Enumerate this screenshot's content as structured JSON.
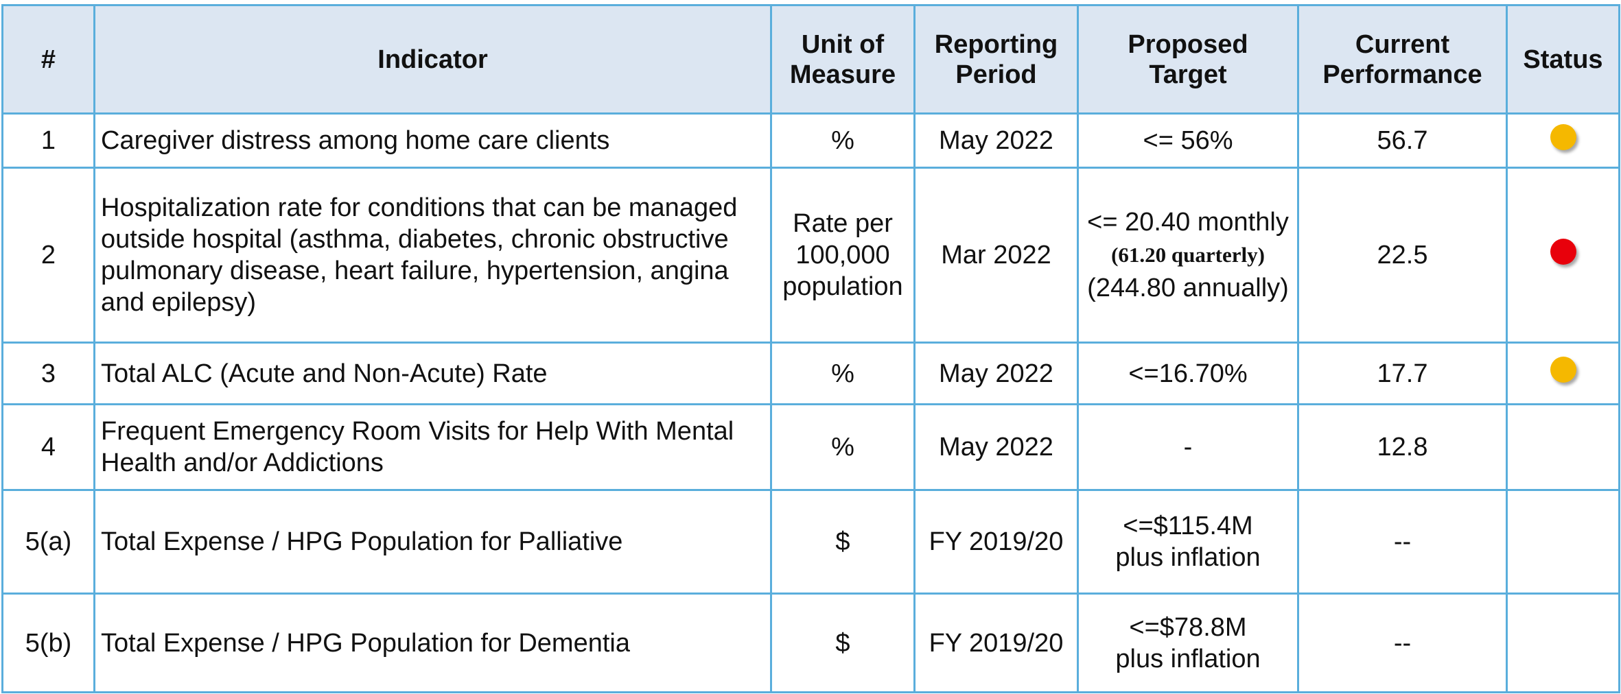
{
  "table": {
    "header": [
      [
        "#"
      ],
      [
        "Indicator"
      ],
      [
        "Unit of",
        "Measure"
      ],
      [
        "Reporting",
        "Period"
      ],
      [
        "Proposed",
        "Target"
      ],
      [
        "Current",
        "Performance"
      ],
      [
        "Status"
      ]
    ],
    "rows": [
      {
        "num": "1",
        "indicator": "Caregiver distress among home care clients",
        "unit": [
          "%"
        ],
        "period": "May 2022",
        "target": [
          "<= 56%"
        ],
        "current": "56.7",
        "status_color": "#f5b800"
      },
      {
        "num": "2",
        "indicator": "Hospitalization rate for conditions that can be managed outside hospital (asthma, diabetes, chronic obstructive pulmonary disease, heart failure, hypertension, angina and epilepsy)",
        "unit": [
          "Rate per",
          "100,000",
          "population"
        ],
        "period": "Mar 2022",
        "target": [
          "<= 20.40 monthly",
          "(61.20 quarterly)",
          "(244.80 annually)"
        ],
        "current": "22.5",
        "status_color": "#e8000b"
      },
      {
        "num": "3",
        "indicator": "Total ALC (Acute and Non-Acute) Rate",
        "unit": [
          "%"
        ],
        "period": "May 2022",
        "target": [
          "<=16.70%"
        ],
        "current": "17.7",
        "status_color": "#f5b800"
      },
      {
        "num": "4",
        "indicator": "Frequent Emergency Room Visits for Help With Mental Health and/or Addictions",
        "unit": [
          "%"
        ],
        "period": "May 2022",
        "target": [
          "-"
        ],
        "current": "12.8",
        "status_color": null
      },
      {
        "num": "5(a)",
        "indicator": "Total Expense / HPG Population for Palliative",
        "unit": [
          "$"
        ],
        "period": "FY 2019/20",
        "target": [
          "<=$115.4M",
          "plus inflation"
        ],
        "current": "--",
        "status_color": null
      },
      {
        "num": "5(b)",
        "indicator": "Total Expense / HPG Population for Dementia",
        "unit": [
          "$"
        ],
        "period": "FY 2019/20",
        "target": [
          "<=$78.8M",
          "plus inflation"
        ],
        "current": "--",
        "status_color": null
      }
    ]
  }
}
